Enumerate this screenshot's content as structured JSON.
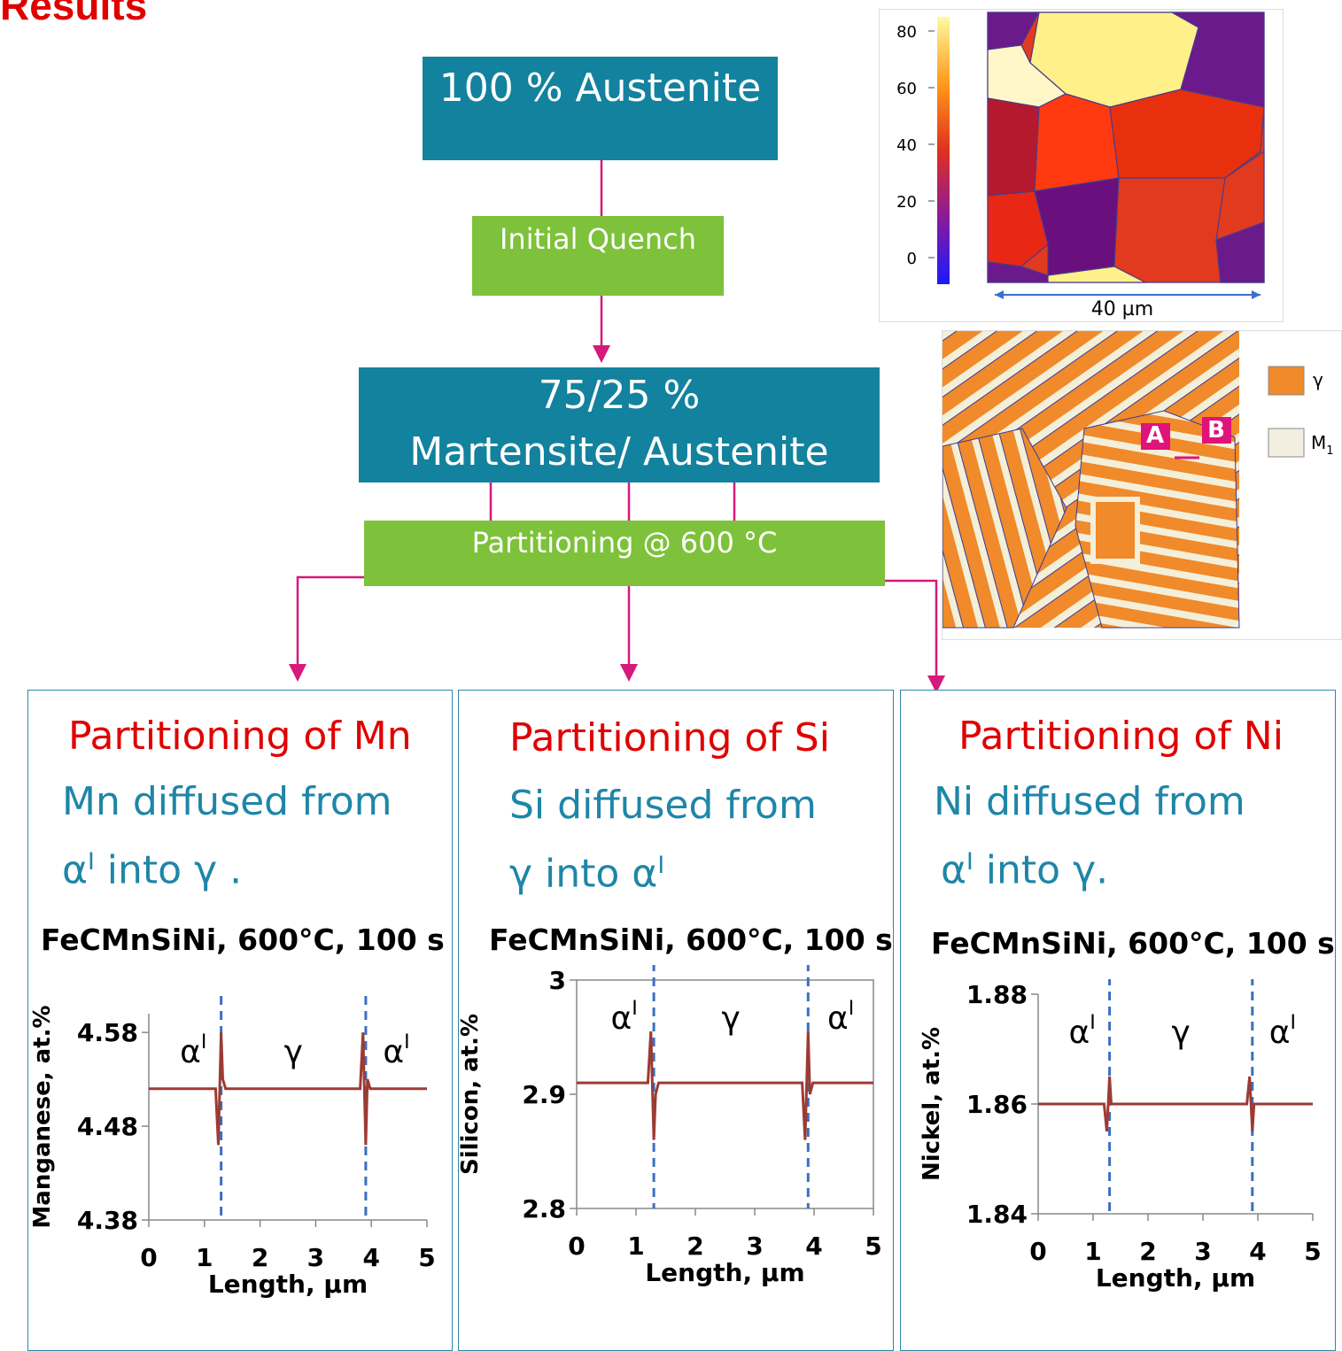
{
  "header": {
    "title": "Results"
  },
  "flow": {
    "austenite_box": "100 % Austenite",
    "quench_box": "Initial Quench",
    "mixture_line1": "75/25 %",
    "mixture_line2": "Martensite/ Austenite",
    "partitioning_box": "Partitioning @ 600 °C"
  },
  "colors": {
    "teal": "#12829e",
    "green": "#7dc23a",
    "arrow": "#d6197a",
    "panel_title": "#e00000",
    "panel_text": "#1e86a8",
    "curve": "#9b3b34",
    "divider": "#3a6fc4"
  },
  "micrographs": {
    "phase_map": {
      "colorbar_ticks": [
        "80",
        "60",
        "40",
        "20",
        "0"
      ],
      "scale_label": "40 µm"
    },
    "phase_fraction_map": {
      "legend": [
        {
          "label": "γ",
          "color": "#f08a2a"
        },
        {
          "label": "M",
          "sub": "1",
          "color": "#f2efe0"
        }
      ],
      "marker_a": "A",
      "marker_b": "B"
    }
  },
  "panels": [
    {
      "title": "Partitioning of Mn",
      "desc_line1": "Mn diffused from",
      "desc_line2_pre": "α",
      "desc_line2_sup": "I",
      "desc_line2_post": " into γ ."
    },
    {
      "title": "Partitioning of Si",
      "desc_line1": "Si diffused from",
      "desc_line2_pre": "γ into α",
      "desc_line2_sup": "I",
      "desc_line2_post": ""
    },
    {
      "title": "Partitioning of Ni",
      "desc_line1": "Ni   diffused   from",
      "desc_line2_pre": "α",
      "desc_line2_sup": "I",
      "desc_line2_post": " into γ."
    }
  ],
  "chart_data": [
    {
      "type": "line",
      "title": "FeCMnSiNi, 600°C, 100 s",
      "xlabel": "Length, µm",
      "ylabel": "Manganese, at.%",
      "xlim": [
        0,
        5
      ],
      "ylim": [
        4.38,
        4.6
      ],
      "x_ticks": [
        "0",
        "1",
        "2",
        "3",
        "4",
        "5"
      ],
      "y_ticks": [
        "4.58",
        "4.48",
        "4.38"
      ],
      "y_tick_values": [
        4.58,
        4.48,
        4.38
      ],
      "interfaces": [
        1.3,
        3.9
      ],
      "region_labels": [
        "αI",
        "γ",
        "αI"
      ],
      "series": [
        {
          "values": {
            "x": [
              0,
              1.2,
              1.25,
              1.3,
              1.33,
              1.38,
              3.8,
              3.85,
              3.9,
              3.93,
              3.98,
              5
            ],
            "y": [
              4.52,
              4.52,
              4.46,
              4.58,
              4.53,
              4.52,
              4.52,
              4.58,
              4.46,
              4.53,
              4.52,
              4.52
            ]
          }
        }
      ]
    },
    {
      "type": "line",
      "title": "FeCMnSiNi, 600°C, 100 s",
      "xlabel": "Length, µm",
      "ylabel": "Silicon, at.%",
      "xlim": [
        0,
        5
      ],
      "ylim": [
        2.8,
        3.0
      ],
      "x_ticks": [
        "0",
        "1",
        "2",
        "3",
        "4",
        "5"
      ],
      "y_ticks": [
        "3",
        "2.9",
        "2.8"
      ],
      "y_tick_values": [
        3.0,
        2.9,
        2.8
      ],
      "interfaces": [
        1.3,
        3.9
      ],
      "region_labels": [
        "αI",
        "γ",
        "αI"
      ],
      "series": [
        {
          "values": {
            "x": [
              0,
              1.2,
              1.25,
              1.3,
              1.33,
              1.38,
              3.8,
              3.85,
              3.9,
              3.93,
              3.98,
              5
            ],
            "y": [
              2.91,
              2.91,
              2.955,
              2.86,
              2.9,
              2.91,
              2.91,
              2.86,
              2.955,
              2.9,
              2.91,
              2.91
            ]
          }
        }
      ]
    },
    {
      "type": "line",
      "title": "FeCMnSiNi, 600°C, 100 s",
      "xlabel": "Length, µm",
      "ylabel": "Nickel, at.%",
      "xlim": [
        0,
        5
      ],
      "ylim": [
        1.84,
        1.88
      ],
      "x_ticks": [
        "0",
        "1",
        "2",
        "3",
        "4",
        "5"
      ],
      "y_ticks": [
        "1.88",
        "1.86",
        "1.84"
      ],
      "y_tick_values": [
        1.88,
        1.86,
        1.84
      ],
      "interfaces": [
        1.3,
        3.9
      ],
      "region_labels": [
        "αI",
        "γ",
        "αI"
      ],
      "series": [
        {
          "values": {
            "x": [
              0,
              1.2,
              1.25,
              1.3,
              1.33,
              1.38,
              3.8,
              3.85,
              3.9,
              3.93,
              3.98,
              5
            ],
            "y": [
              1.86,
              1.86,
              1.855,
              1.865,
              1.86,
              1.86,
              1.86,
              1.865,
              1.855,
              1.86,
              1.86,
              1.86
            ]
          }
        }
      ]
    }
  ]
}
